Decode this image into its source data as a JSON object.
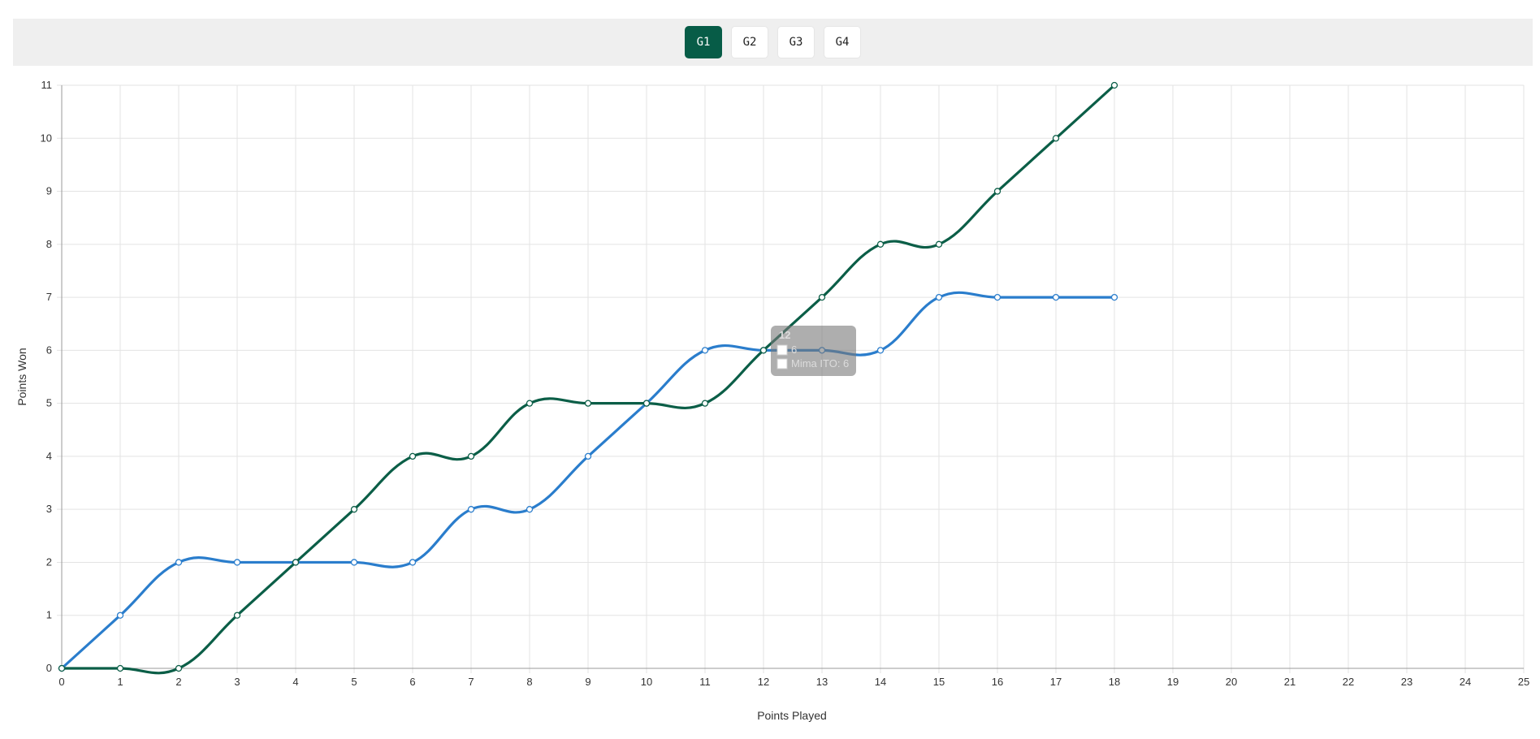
{
  "tabs": [
    {
      "label": "G1",
      "active": true
    },
    {
      "label": "G2",
      "active": false
    },
    {
      "label": "G3",
      "active": false
    },
    {
      "label": "G4",
      "active": false
    }
  ],
  "colors": {
    "series_a": "#2a7dcc",
    "series_b": "#0b5e47",
    "grid": "#e3e3e3",
    "axis": "#999999",
    "tab_active": "#075c47"
  },
  "tooltip": {
    "title": "12",
    "lines": [
      "6",
      "Mima ITO: 6"
    ]
  },
  "chart_data": {
    "type": "line",
    "xlabel": "Points Played",
    "ylabel": "Points Won",
    "xlim": [
      0,
      25
    ],
    "ylim": [
      0,
      11
    ],
    "grid": true,
    "x": [
      0,
      1,
      2,
      3,
      4,
      5,
      6,
      7,
      8,
      9,
      10,
      11,
      12,
      13,
      14,
      15,
      16,
      17,
      18
    ],
    "series": [
      {
        "values": [
          0,
          1,
          2,
          2,
          2,
          2,
          2,
          3,
          3,
          4,
          5,
          6,
          6,
          6,
          6,
          7,
          7,
          7,
          7
        ]
      },
      {
        "name": "Mima ITO",
        "values": [
          0,
          0,
          0,
          1,
          2,
          3,
          4,
          4,
          5,
          5,
          5,
          5,
          6,
          7,
          8,
          8,
          9,
          10,
          11
        ]
      }
    ]
  }
}
